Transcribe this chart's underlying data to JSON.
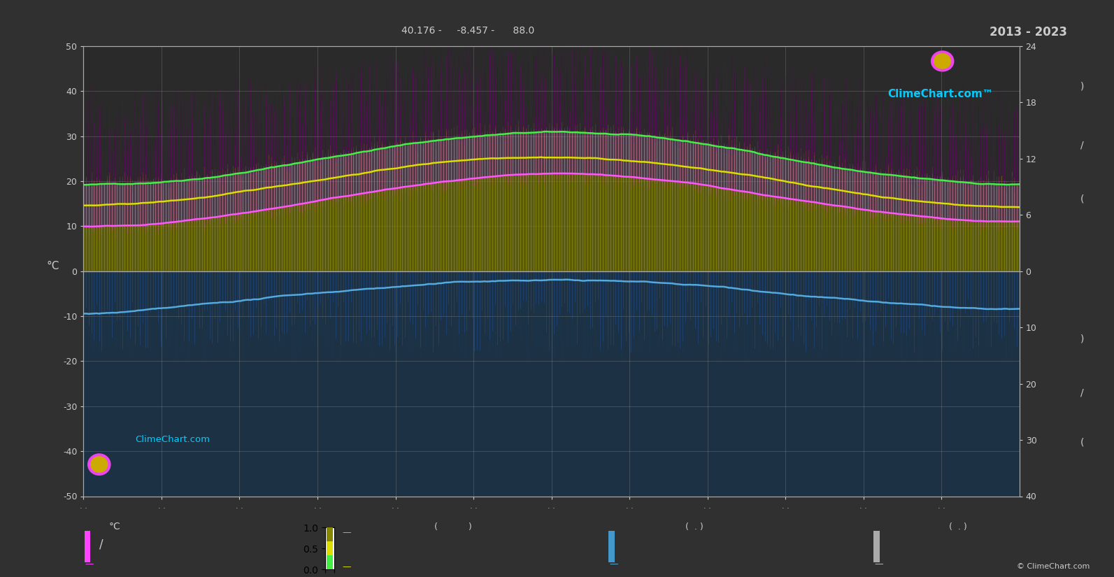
{
  "bg_color": "#303030",
  "plot_bg": "#2a2a2a",
  "grid_color": "#606060",
  "text_color": "#cccccc",
  "ylim_left": [
    -50,
    50
  ],
  "green_color": "#44ee44",
  "yellow_color": "#dddd00",
  "pink_color": "#ff55ff",
  "blue_color": "#55aadd",
  "cyan_color": "#00ccff",
  "title": "2013 - 2023",
  "subtitle": "40.176 -     -8.457 -      88.0",
  "logo_text": "ClimeChart.com™",
  "logo_text2": "ClimeChart.com",
  "copyright": "© ClimeChart.com",
  "ylabel": "°C",
  "n": 365
}
